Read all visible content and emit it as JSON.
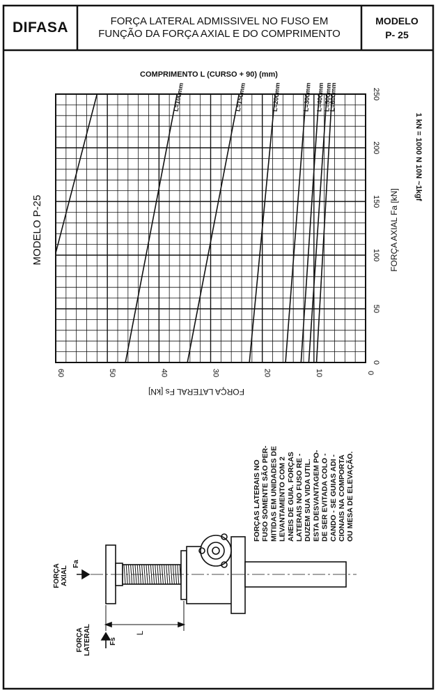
{
  "header": {
    "brand": "DIFASA",
    "title_line1": "FORÇA LATERAL ADMISSIVEL NO FUSO EM",
    "title_line2": "FUNÇÃO DA FORÇA AXIAL E DO COMPRIMENTO",
    "model_label": "MODELO",
    "model_value": "P- 25"
  },
  "side_label": "MODELO P-25",
  "unit_note": "1 kN = 1000 N   10N ~1kgf",
  "chart_data": {
    "type": "line",
    "title": "COMPRIMENTO L (CURSO + 90) (mm)",
    "xlabel": "FORÇA LATERAL Fs [kN]",
    "ylabel": "FORÇA AXIAL Fa [kN]",
    "xlim": [
      0,
      60
    ],
    "ylim": [
      0,
      250
    ],
    "x_ticks": [
      0,
      10,
      20,
      30,
      40,
      50,
      60
    ],
    "y_ticks": [
      0,
      50,
      100,
      150,
      200,
      250
    ],
    "grid": true,
    "series": [
      {
        "name": "L=100mm",
        "points": [
          [
            46.5,
            0
          ],
          [
            36.5,
            250
          ]
        ]
      },
      {
        "name": "L=150mm",
        "points": [
          [
            34.5,
            0
          ],
          [
            24.5,
            250
          ]
        ]
      },
      {
        "name": "L=200mm",
        "points": [
          [
            22.5,
            0
          ],
          [
            17.5,
            250
          ]
        ]
      },
      {
        "name": "L=300mm",
        "points": [
          [
            15.5,
            0
          ],
          [
            11.5,
            250
          ]
        ]
      },
      {
        "name": "L=400mm",
        "points": [
          [
            12.5,
            0
          ],
          [
            9,
            250
          ]
        ]
      },
      {
        "name": "L=500mm",
        "points": [
          [
            11,
            0
          ],
          [
            7.5,
            250
          ]
        ]
      },
      {
        "name": "L=600mm",
        "points": [
          [
            9.5,
            0
          ],
          [
            6.5,
            250
          ]
        ]
      },
      {
        "name": "L=100mm",
        "points": [
          [
            60,
            102
          ],
          [
            52,
            250
          ]
        ]
      }
    ]
  },
  "note_lines": [
    "FORÇAS LATERAIS NO",
    "FUSO SOMENTE SÃO PER-",
    "MITIDAS EM UNIDADES DE",
    "LEVANTAMENTO COM 2",
    "ANEIS DE GUIA. FORÇAS",
    "LATERAIS NO FUSO RE -",
    "DUZEM SUA VIDA UTIL.",
    "ESTA DESVANTAGEM PO-",
    "DE SER EVITADA COLO -",
    "CANDO - SE GUIAS ADI -",
    "CIONAIS NA COMPORTA",
    "OU MESA DE ELEVAÇÃO."
  ],
  "drawing": {
    "axial_label_1": "FORÇA",
    "axial_label_2": "AXIAL",
    "axial_symbol": "Fa",
    "lateral_label_1": "FORÇA",
    "lateral_label_2": "LATERAL",
    "lateral_symbol": "Fs",
    "length_symbol": "L"
  }
}
